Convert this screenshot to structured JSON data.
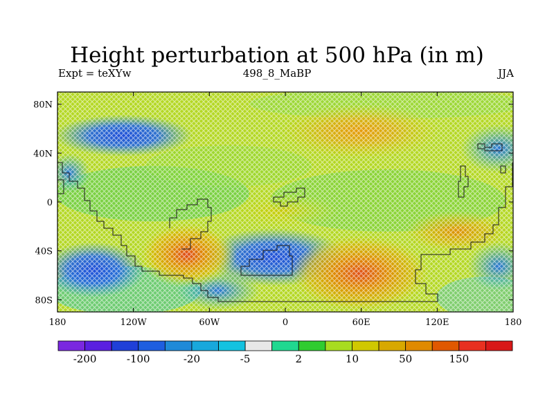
{
  "title": "Height perturbation at 500 hPa (in m)",
  "subtitle_left": "Expt = teXYw",
  "subtitle_center": "498_8_MaBP",
  "subtitle_right": "JJA",
  "map": {
    "projection": "cylindrical-equidistant",
    "lon_range": [
      -180,
      180
    ],
    "lat_range": [
      -90,
      90
    ],
    "x_ticks": [
      {
        "value": -180,
        "label": "180"
      },
      {
        "value": -120,
        "label": "120W"
      },
      {
        "value": -60,
        "label": "60W"
      },
      {
        "value": 0,
        "label": "0"
      },
      {
        "value": 60,
        "label": "60E"
      },
      {
        "value": 120,
        "label": "120E"
      },
      {
        "value": 180,
        "label": "180"
      }
    ],
    "y_ticks": [
      {
        "value": 80,
        "label": "80N"
      },
      {
        "value": 40,
        "label": "40N"
      },
      {
        "value": 0,
        "label": "0"
      },
      {
        "value": -40,
        "label": "40S"
      },
      {
        "value": -80,
        "label": "80S"
      }
    ],
    "overlay": "cross-hatched stippling pattern",
    "coastlines": "blocky paleogeography outline",
    "field_features": [
      {
        "type": "high",
        "lon": 45,
        "lat": 50,
        "value": 60
      },
      {
        "type": "high",
        "lon": -75,
        "lat": -45,
        "value": 160
      },
      {
        "type": "high",
        "lon": 60,
        "lat": -62,
        "value": 120
      },
      {
        "type": "high",
        "lon": 140,
        "lat": -32,
        "value": 70
      },
      {
        "type": "low",
        "lon": -125,
        "lat": 48,
        "value": -110
      },
      {
        "type": "low",
        "lon": 175,
        "lat": 40,
        "value": -60
      },
      {
        "type": "low",
        "lon": -20,
        "lat": -40,
        "value": -90
      },
      {
        "type": "low",
        "lon": -160,
        "lat": -50,
        "value": -70
      }
    ]
  },
  "colorbar": {
    "colors": [
      "#7a28e0",
      "#5a20e0",
      "#2040d8",
      "#1e5ee0",
      "#1f8ad8",
      "#18a8dc",
      "#14c2e0",
      "#e8e8e8",
      "#20d890",
      "#30cc30",
      "#a8dc20",
      "#d0c800",
      "#d8a800",
      "#e08a00",
      "#e05800",
      "#e83020",
      "#d81818"
    ],
    "labels": [
      {
        "boundary": 1,
        "text": "-200"
      },
      {
        "boundary": 3,
        "text": "-100"
      },
      {
        "boundary": 5,
        "text": "-20"
      },
      {
        "boundary": 7,
        "text": "-5"
      },
      {
        "boundary": 9,
        "text": "2"
      },
      {
        "boundary": 11,
        "text": "10"
      },
      {
        "boundary": 13,
        "text": "50"
      },
      {
        "boundary": 15,
        "text": "150"
      }
    ]
  }
}
